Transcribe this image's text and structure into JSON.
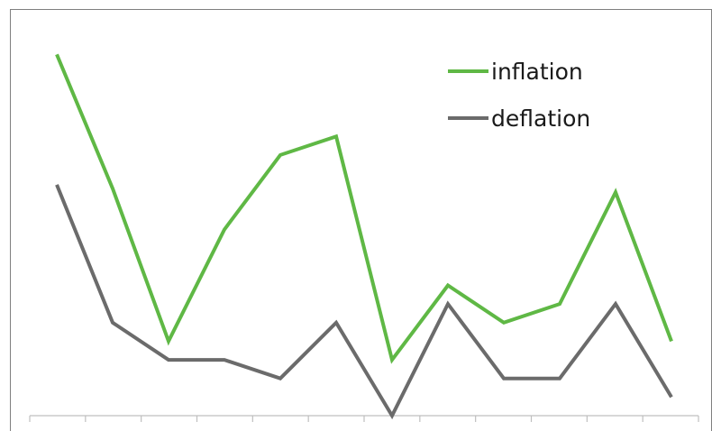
{
  "chart_data": {
    "type": "line",
    "x": [
      1,
      2,
      3,
      4,
      5,
      6,
      7,
      8,
      9,
      10,
      11,
      12
    ],
    "series": [
      {
        "name": "inflation",
        "color": "#5fb845",
        "values": [
          9.7,
          6.1,
          2.0,
          5.0,
          7.0,
          7.5,
          1.5,
          3.5,
          2.5,
          3.0,
          6.0,
          2.0
        ]
      },
      {
        "name": "deflation",
        "color": "#6b6b6b",
        "values": [
          6.2,
          2.5,
          1.5,
          1.5,
          1.0,
          2.5,
          0.0,
          3.0,
          1.0,
          1.0,
          3.0,
          0.5
        ]
      }
    ],
    "title": "",
    "xlabel": "",
    "ylabel": "",
    "ylim": [
      0,
      10
    ],
    "grid": false,
    "legend_position": "top-right"
  }
}
